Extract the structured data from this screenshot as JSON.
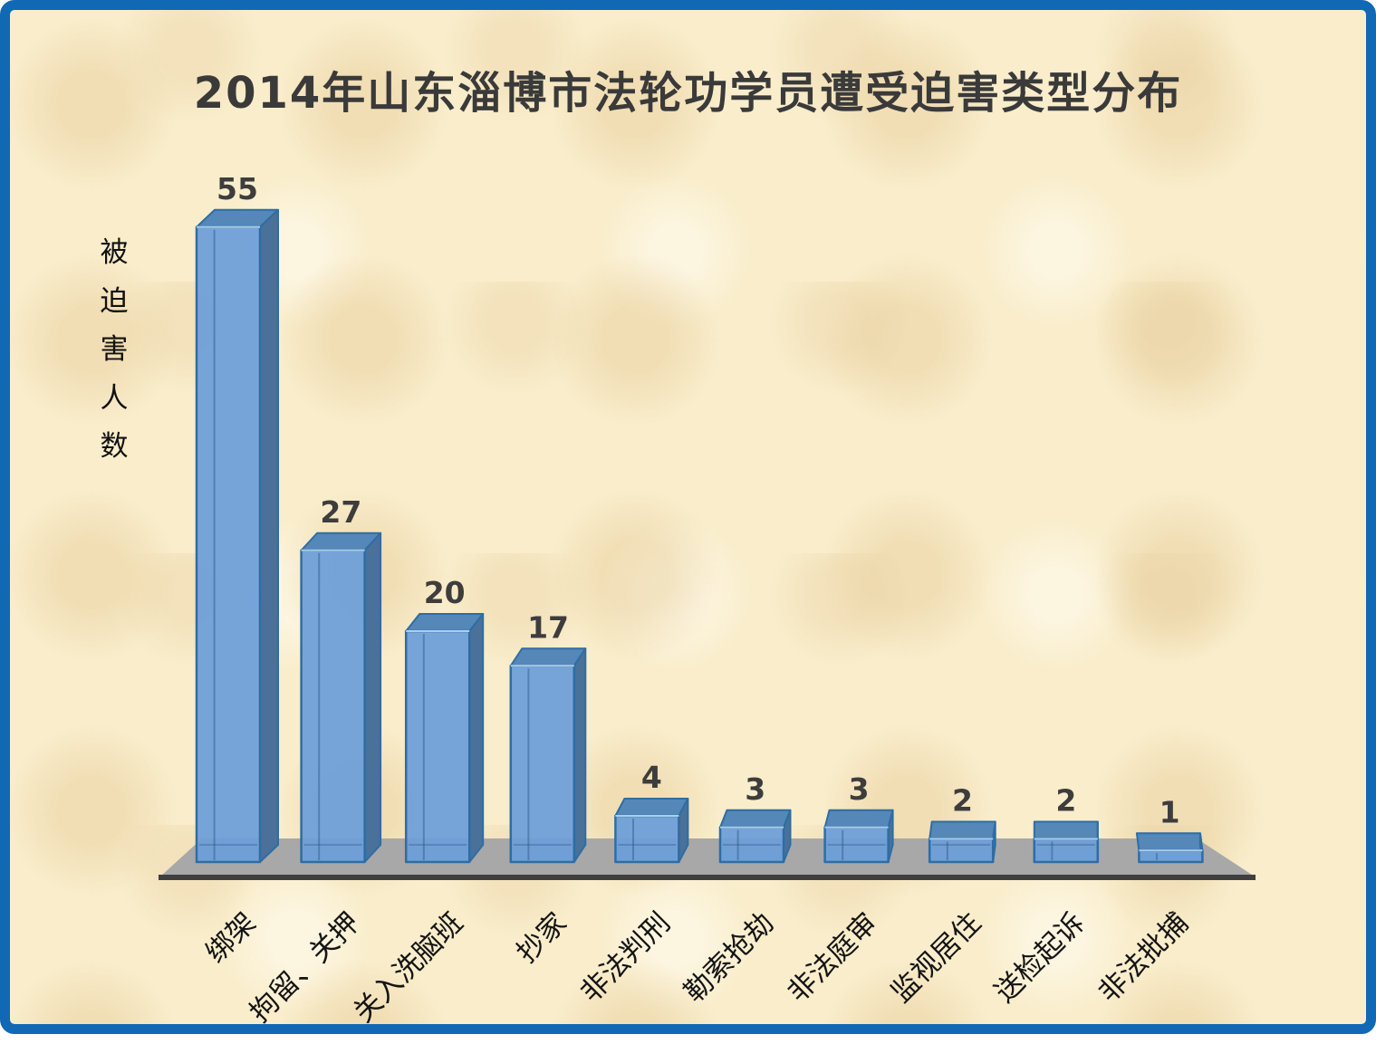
{
  "window": {
    "border_color": "#1168B5",
    "background_color": "#F9EDCB"
  },
  "chart_data": {
    "type": "bar",
    "projection": "3d",
    "title": "2014年山东淄博市法轮功学员遭受迫害类型分布",
    "ylabel": "被迫害人数",
    "xlabel": "",
    "categories": [
      "绑架",
      "拘留、关押",
      "关入洗脑班",
      "抄家",
      "非法判刑",
      "勒索抢劫",
      "非法庭审",
      "监视居住",
      "送检起诉",
      "非法批捕"
    ],
    "values": [
      55,
      27,
      20,
      17,
      4,
      3,
      3,
      2,
      2,
      1
    ],
    "data_labels": [
      55,
      27,
      20,
      17,
      4,
      3,
      3,
      2,
      2,
      1
    ],
    "ylim": [
      0,
      55
    ],
    "grid": false,
    "legend": false,
    "colors": {
      "bar_front": "#6C9ED9",
      "bar_side": "#4A7199",
      "bar_top": "#5587B8",
      "bar_border": "#2E6DA4",
      "floor": "#A8A8A8",
      "floor_edge": "#3F3F3F",
      "value_label": "#3D3D3D",
      "category_label": "#141414",
      "title_color": "#3A3A3A",
      "axis_label_color": "#111111"
    }
  }
}
